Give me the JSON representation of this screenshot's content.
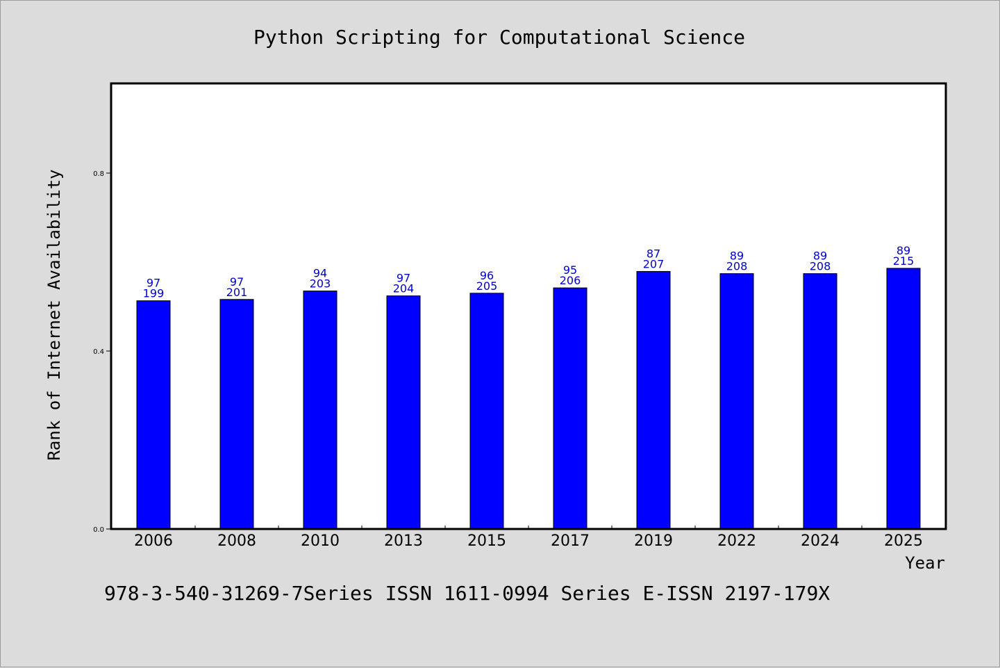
{
  "colors": {
    "background": "#dcdcdc",
    "plot_background": "#ffffff",
    "bar": "#0000ff",
    "bar_label": "#0000cc",
    "text": "#000000"
  },
  "footer_text": "978-3-540-31269-7Series ISSN 1611-0994 Series E-ISSN 2197-179X",
  "chart_data": {
    "type": "bar",
    "title": "Python Scripting for Computational Science",
    "xlabel": "Year",
    "ylabel": "Rank of Internet Availability",
    "ylim": [
      0,
      1.0
    ],
    "yticks": [
      "0.0",
      "0.4",
      "0.8"
    ],
    "grid": false,
    "legend": "none",
    "categories": [
      "2006",
      "2008",
      "2010",
      "2013",
      "2015",
      "2017",
      "2019",
      "2022",
      "2024",
      "2025"
    ],
    "values": [
      0.513,
      0.516,
      0.535,
      0.524,
      0.53,
      0.542,
      0.579,
      0.574,
      0.574,
      0.586
    ],
    "label_top": [
      "97",
      "97",
      "94",
      "97",
      "96",
      "95",
      "87",
      "89",
      "89",
      "89"
    ],
    "label_bottom": [
      "199",
      "201",
      "203",
      "204",
      "205",
      "206",
      "207",
      "208",
      "208",
      "215"
    ]
  }
}
